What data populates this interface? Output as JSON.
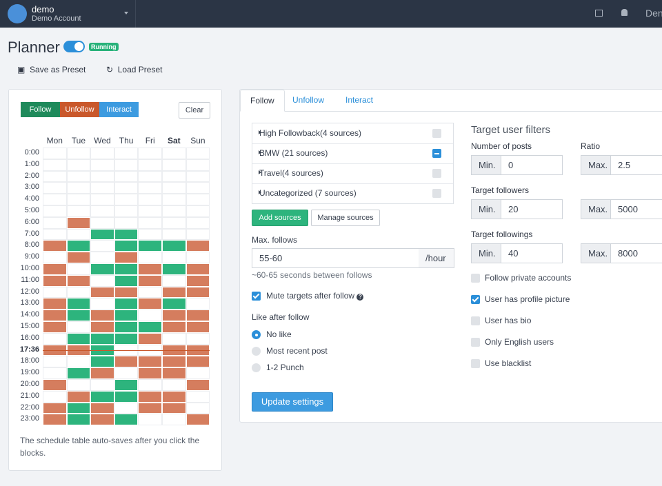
{
  "header": {
    "user": "demo",
    "account": "Demo Account",
    "right_text": "Den"
  },
  "page": {
    "title": "Planner",
    "status": "Running",
    "actions": [
      "Save as Preset",
      "Load Preset"
    ]
  },
  "schedule": {
    "modes": [
      "Follow",
      "Unfollow",
      "Interact"
    ],
    "mode_colors": [
      "#1f8a5b",
      "#c9582b",
      "#3d9be0"
    ],
    "cell_colors": [
      "#2db47d",
      "#d57d5e"
    ],
    "clear": "Clear",
    "days": [
      "Mon",
      "Tue",
      "Wed",
      "Thu",
      "Fri",
      "Sat",
      "Sun"
    ],
    "today": 5,
    "hours": [
      "0:00",
      "1:00",
      "2:00",
      "3:00",
      "4:00",
      "5:00",
      "6:00",
      "7:00",
      "8:00",
      "9:00",
      "10:00",
      "11:00",
      "12:00",
      "13:00",
      "14:00",
      "15:00",
      "16:00",
      "17:36",
      "18:00",
      "19:00",
      "20:00",
      "21:00",
      "22:00",
      "23:00"
    ],
    "current_row": 17,
    "cells": [
      [
        null,
        null,
        null,
        null,
        null,
        null,
        null
      ],
      [
        null,
        null,
        null,
        null,
        null,
        null,
        null
      ],
      [
        null,
        null,
        null,
        null,
        null,
        null,
        null
      ],
      [
        null,
        null,
        null,
        null,
        null,
        null,
        null
      ],
      [
        null,
        null,
        null,
        null,
        null,
        null,
        null
      ],
      [
        null,
        null,
        null,
        null,
        null,
        null,
        null
      ],
      [
        null,
        1,
        null,
        null,
        null,
        null,
        null
      ],
      [
        null,
        null,
        0,
        0,
        null,
        null,
        null
      ],
      [
        1,
        0,
        null,
        0,
        0,
        0,
        1
      ],
      [
        null,
        1,
        null,
        1,
        null,
        null,
        null
      ],
      [
        1,
        null,
        0,
        0,
        1,
        0,
        1
      ],
      [
        1,
        1,
        null,
        0,
        1,
        null,
        1
      ],
      [
        null,
        null,
        1,
        1,
        null,
        1,
        1
      ],
      [
        1,
        0,
        null,
        0,
        1,
        0,
        null
      ],
      [
        1,
        0,
        1,
        0,
        null,
        1,
        1
      ],
      [
        1,
        null,
        1,
        0,
        0,
        1,
        1
      ],
      [
        null,
        0,
        0,
        0,
        1,
        null,
        null
      ],
      [
        1,
        1,
        0,
        null,
        null,
        1,
        1
      ],
      [
        null,
        null,
        0,
        1,
        1,
        1,
        1
      ],
      [
        null,
        0,
        1,
        null,
        1,
        1,
        null
      ],
      [
        1,
        null,
        null,
        0,
        null,
        null,
        1
      ],
      [
        null,
        1,
        0,
        0,
        1,
        1,
        null
      ],
      [
        1,
        0,
        1,
        null,
        1,
        1,
        null
      ],
      [
        1,
        0,
        1,
        0,
        null,
        null,
        1
      ]
    ],
    "note": "The schedule table auto-saves after you click the blocks."
  },
  "settings": {
    "tabs": [
      "Follow",
      "Unfollow",
      "Interact"
    ],
    "active_tab": 0,
    "sources": [
      {
        "label": "High Followback(4 sources)",
        "state": "unchecked"
      },
      {
        "label": "BMW (21 sources)",
        "state": "indeterminate"
      },
      {
        "label": "Travel(4 sources)",
        "state": "unchecked"
      },
      {
        "label": "Uncategorized (7 sources)",
        "state": "unchecked"
      }
    ],
    "add_sources": "Add sources",
    "manage_sources": "Manage sources",
    "max_follows_label": "Max. follows",
    "max_follows": "55-60",
    "per_hour": "/hour",
    "hint": "~60-65 seconds between follows",
    "mute": {
      "label": "Mute targets after follow",
      "checked": true
    },
    "like_label": "Like after follow",
    "like_options": [
      "No like",
      "Most recent post",
      "1-2 Punch"
    ],
    "like_selected": 0,
    "update": "Update settings"
  },
  "filters": {
    "title": "Target user filters",
    "min_label": "Min.",
    "max_label": "Max.",
    "groups": [
      {
        "label": "Number of posts",
        "min": "0"
      },
      {
        "label": "Ratio",
        "max": "2.5"
      },
      {
        "label": "Target followers",
        "min": "20",
        "max": "5000"
      },
      {
        "label": "Target followings",
        "min": "40",
        "max": "8000"
      }
    ],
    "checks": [
      {
        "label": "Follow private accounts",
        "checked": false
      },
      {
        "label": "User has profile picture",
        "checked": true
      },
      {
        "label": "User has bio",
        "checked": false
      },
      {
        "label": "Only English users",
        "checked": false
      },
      {
        "label": "Use blacklist",
        "checked": false
      }
    ]
  }
}
